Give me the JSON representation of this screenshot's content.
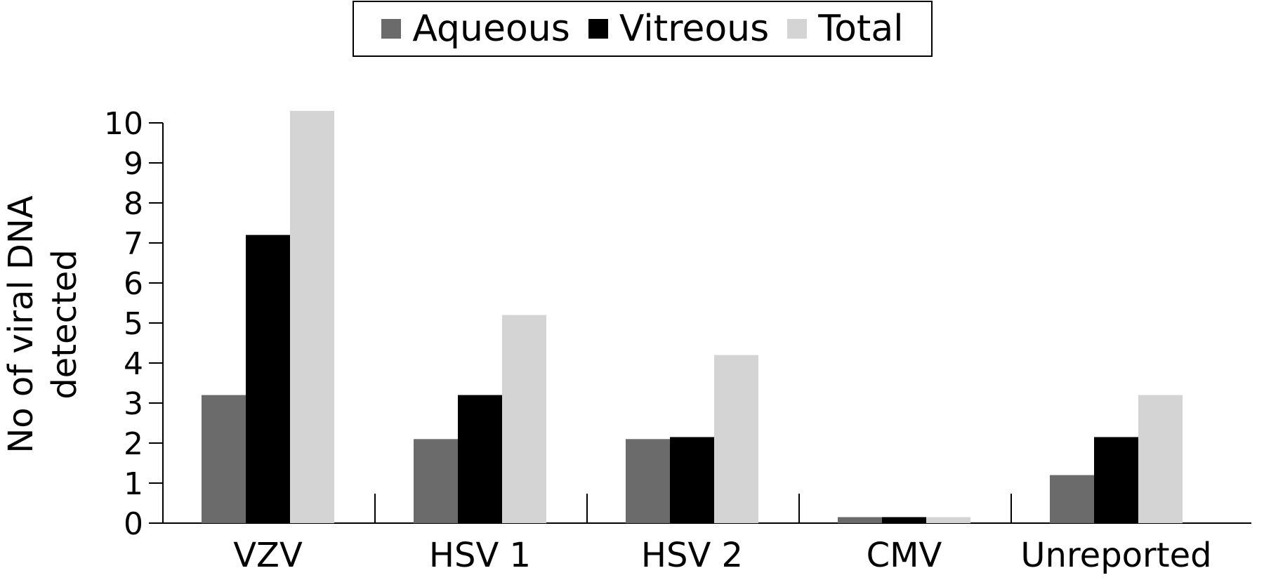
{
  "chart_data": {
    "type": "bar",
    "categories": [
      "VZV",
      "HSV 1",
      "HSV 2",
      "CMV",
      "Unreported"
    ],
    "series": [
      {
        "name": "Aqueous",
        "values": [
          3.2,
          2.1,
          2.1,
          0.15,
          1.2
        ],
        "color": "#6b6b6b"
      },
      {
        "name": "Vitreous",
        "values": [
          7.2,
          3.2,
          2.15,
          0.15,
          2.15
        ],
        "color": "#000000"
      },
      {
        "name": "Total",
        "values": [
          10.3,
          5.2,
          4.2,
          0.15,
          3.2
        ],
        "color": "#d4d4d4"
      }
    ],
    "ylabel_lines": [
      "No of viral DNA",
      "detected"
    ],
    "yticks": [
      "0",
      "1",
      "2",
      "3",
      "4",
      "5",
      "6",
      "7",
      "8",
      "9",
      "10"
    ],
    "ylim": [
      0,
      10.5
    ],
    "grid": false,
    "legend_position": "top-center"
  }
}
